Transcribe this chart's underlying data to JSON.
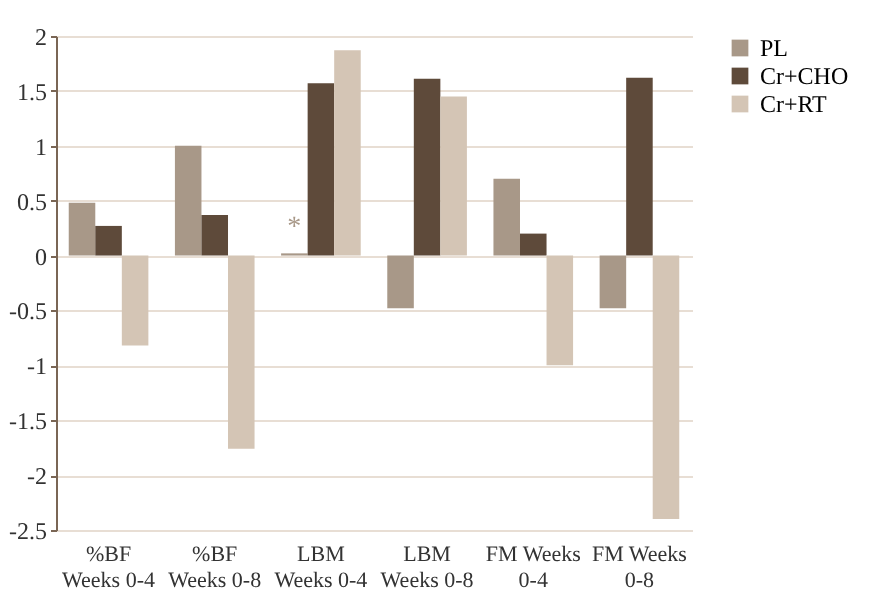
{
  "chart_data": {
    "type": "bar",
    "categories": [
      "%BF Weeks 0-4",
      "%BF Weeks 0-8",
      "LBM Weeks 0-4",
      "LBM Weeks 0-8",
      "FM Weeks 0-4",
      "FM Weeks 0-8"
    ],
    "series": [
      {
        "name": "PL",
        "color": "#a89888",
        "values": [
          0.48,
          1.0,
          0.02,
          -0.48,
          0.7,
          -0.48
        ]
      },
      {
        "name": "Cr+CHO",
        "color": "#5e4a3a",
        "values": [
          0.27,
          0.37,
          1.57,
          1.61,
          0.2,
          1.62
        ]
      },
      {
        "name": "Cr+RT",
        "color": "#d4c5b5",
        "values": [
          -0.82,
          -1.76,
          1.87,
          1.45,
          -1.0,
          -2.4
        ]
      }
    ],
    "ylim": [
      -2.5,
      2
    ],
    "yticks": [
      -2.5,
      -2,
      -1.5,
      -1,
      -0.5,
      0,
      0.5,
      1,
      1.5,
      2
    ],
    "grid": "y",
    "legend": "right",
    "annotations": [
      {
        "text": "*",
        "x": "LBM Weeks 0-4",
        "y": 0.02
      }
    ]
  }
}
